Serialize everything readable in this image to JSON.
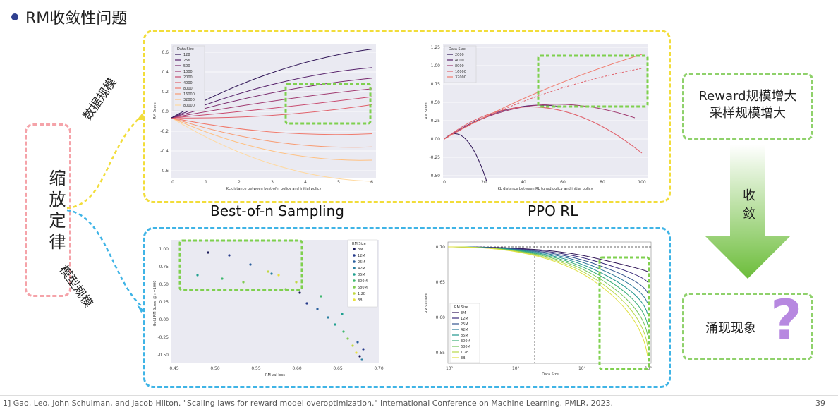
{
  "slide": {
    "title": "RM收敛性问题",
    "law_label": "缩放定律",
    "branch_top": "数据规模",
    "branch_bottom": "模型规模",
    "panel_top_left_caption": "Best-of-n Sampling",
    "panel_top_right_caption": "PPO RL",
    "right_box_top_line1": "Reward规模增大",
    "right_box_top_line2": "采样规模增大",
    "converge_label": "收敛",
    "emergence_label": "涌现现象",
    "question_mark": "?",
    "footer_text": "1] Gao, Leo, John Schulman, and Jacob Hilton. \"Scaling laws for reward model overoptimization.\" International Conference on Machine Learning. PMLR, 2023.",
    "page_number": "39",
    "accent_purple": "#b788e0",
    "arrow_green": "#6cbd3a"
  },
  "chart_data": [
    {
      "type": "line",
      "xlabel": "KL distance between best-of-n policy and initial policy",
      "ylabel": "RM Score",
      "legend_title": "Data Size",
      "legend": [
        "128",
        "256",
        "500",
        "1000",
        "2000",
        "4000",
        "8000",
        "16000",
        "32000",
        "80000"
      ],
      "xticks": [
        "0",
        "1",
        "2",
        "3",
        "4",
        "5",
        "6"
      ],
      "yticks": [
        "-0.6",
        "-0.4",
        "-0.2",
        "0.0",
        "0.2",
        "0.4",
        "0.6"
      ]
    },
    {
      "type": "line",
      "xlabel": "KL distance between RL tuned policy and initial policy",
      "ylabel": "RM Score",
      "legend_title": "Data Size",
      "legend": [
        "2000",
        "4000",
        "8000",
        "16000",
        "32000"
      ],
      "xticks": [
        "0",
        "20",
        "40",
        "60",
        "80",
        "100"
      ],
      "yticks": [
        "-0.50",
        "-0.25",
        "0.00",
        "0.25",
        "0.50",
        "0.75",
        "1.00",
        "1.25"
      ]
    },
    {
      "type": "scatter",
      "xlabel": "RM val loss",
      "ylabel": "Gold RM Score @ n=1000",
      "legend_title": "RM Size",
      "legend": [
        "3M",
        "12M",
        "25M",
        "42M",
        "85M",
        "300M",
        "680M",
        "1.2B",
        "3B"
      ],
      "xticks": [
        "0.45",
        "0.50",
        "0.55",
        "0.60",
        "0.65",
        "0.70"
      ],
      "yticks": [
        "-0.50",
        "-0.25",
        "0.00",
        "0.25",
        "0.50",
        "0.75",
        "1.00"
      ]
    },
    {
      "type": "line",
      "xlabel": "Data Size",
      "ylabel": "RM val loss",
      "legend_title": "RM Size",
      "legend": [
        "3M",
        "12M",
        "25M",
        "42M",
        "85M",
        "300M",
        "680M",
        "1.2B",
        "3B"
      ],
      "xticks": [
        "10²",
        "10³",
        "10⁴",
        "10⁵"
      ],
      "yticks": [
        "0.55",
        "0.60",
        "0.65",
        "0.70"
      ]
    }
  ]
}
